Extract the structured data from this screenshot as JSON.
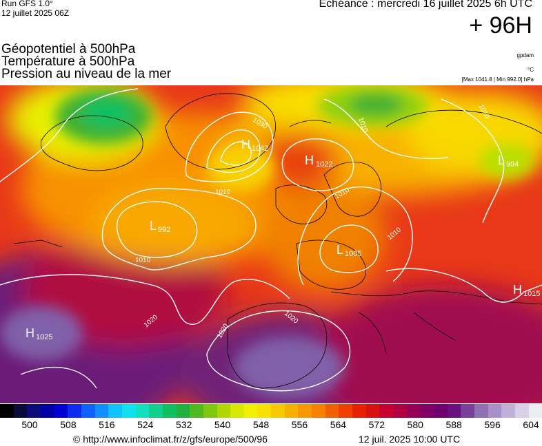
{
  "header": {
    "run": "Run GFS 1.0°",
    "run_date": "12 juillet 2025 06Z",
    "echeance": "Echéance : mercredi 16 juillet 2025 6h UTC",
    "lead_time": "+ 96H"
  },
  "fields": {
    "line1": "Géopotentiel à 500hPa",
    "line2": "Température à 500hPa",
    "line3": "Pression au niveau de la mer"
  },
  "legend_notes": {
    "unit_geopotential": "gpdam",
    "unit_temperature": "°C",
    "pressure_range": "[Max 1041.8 | Min 992.0] hPa"
  },
  "pressure_centers": [
    {
      "type": "H",
      "value": "1042",
      "icon": "high-pressure-marker"
    },
    {
      "type": "H",
      "value": "1022",
      "icon": "high-pressure-marker"
    },
    {
      "type": "L",
      "value": "994",
      "icon": "low-pressure-marker"
    },
    {
      "type": "L",
      "value": "992",
      "icon": "low-pressure-marker"
    },
    {
      "type": "L",
      "value": "1005",
      "icon": "low-pressure-marker"
    },
    {
      "type": "H",
      "value": "1015",
      "icon": "high-pressure-marker"
    },
    {
      "type": "H",
      "value": "1025",
      "icon": "high-pressure-marker"
    }
  ],
  "isobar_labels": [
    "1030",
    "1010",
    "1010",
    "1010",
    "1020",
    "1020",
    "1020",
    "1010",
    "1010",
    "1010"
  ],
  "color_scale": {
    "ticks": [
      "500",
      "508",
      "516",
      "524",
      "532",
      "540",
      "548",
      "556",
      "564",
      "572",
      "580",
      "588",
      "596",
      "604"
    ],
    "colors": [
      "#000000",
      "#0a0a3a",
      "#0c0c78",
      "#0000a8",
      "#0000d0",
      "#0c2cf0",
      "#1060ff",
      "#1090ff",
      "#10c0ff",
      "#10e0f0",
      "#10e0c0",
      "#10d090",
      "#10c060",
      "#20b040",
      "#50b820",
      "#80c810",
      "#b0d800",
      "#d8e800",
      "#f0f000",
      "#f8e000",
      "#f8c800",
      "#f8b000",
      "#f89800",
      "#f88000",
      "#f06000",
      "#f04000",
      "#e82000",
      "#d81010",
      "#c80030",
      "#b00040",
      "#980058",
      "#800068",
      "#700070",
      "#681080",
      "#784098",
      "#9070b0",
      "#a890c8",
      "#c0b0d8",
      "#d8d0e8",
      "#ececf4"
    ]
  },
  "footer": {
    "source": "© http://www.infoclimat.fr/z/gfs/europe/500/96",
    "issued": "12 juil. 2025 10:00 UTC"
  },
  "colors": {
    "isobar": "#ffffff",
    "coastline": "#000000"
  }
}
